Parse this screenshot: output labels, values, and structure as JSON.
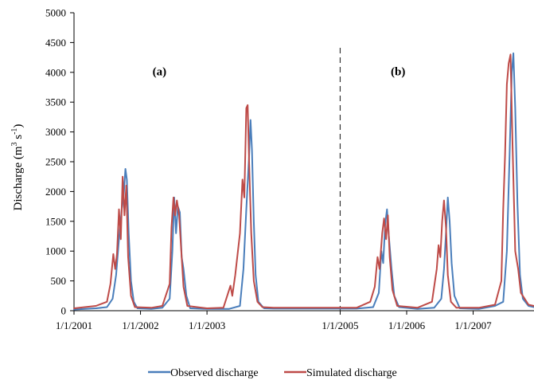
{
  "chart_data": {
    "type": "line",
    "xlabel": "",
    "ylabel": "Discharge (m³ s⁻¹)",
    "ylabel_parts": {
      "main": "Discharge (m",
      "sup1": "3",
      "mid": " s",
      "sup2": "-1",
      "end": ")"
    },
    "ylim": [
      0,
      5000
    ],
    "yticks": [
      0,
      500,
      1000,
      1500,
      2000,
      2500,
      3000,
      3500,
      4000,
      4500,
      5000
    ],
    "xlim": [
      "2001-01-01",
      "2007-12-01"
    ],
    "xticks": [
      {
        "date": "2001-01-01",
        "label": "1/1/2001"
      },
      {
        "date": "2002-01-01",
        "label": "1/1/2002"
      },
      {
        "date": "2003-01-01",
        "label": "1/1/2003"
      },
      {
        "date": "2005-01-01",
        "label": "1/1/2005"
      },
      {
        "date": "2006-01-01",
        "label": "1/1/2006"
      },
      {
        "date": "2007-01-01",
        "label": "1/1/2007"
      }
    ],
    "divider_date": "2005-01-01",
    "panel_labels": [
      {
        "text": "(a)",
        "date": "2002-04-15",
        "y": 3950
      },
      {
        "text": "(b)",
        "date": "2005-11-15",
        "y": 3950
      }
    ],
    "legend_position": "bottom",
    "series": [
      {
        "name": "Observed discharge",
        "color": "#4a7ebb",
        "points": [
          [
            "2001-01-01",
            20
          ],
          [
            "2001-03-01",
            30
          ],
          [
            "2001-05-01",
            40
          ],
          [
            "2001-07-01",
            60
          ],
          [
            "2001-08-01",
            200
          ],
          [
            "2001-08-20",
            600
          ],
          [
            "2001-09-05",
            1200
          ],
          [
            "2001-09-20",
            1700
          ],
          [
            "2001-10-01",
            1950
          ],
          [
            "2001-10-10",
            2380
          ],
          [
            "2001-10-18",
            2200
          ],
          [
            "2001-10-28",
            1300
          ],
          [
            "2001-11-10",
            500
          ],
          [
            "2001-11-25",
            150
          ],
          [
            "2001-12-15",
            40
          ],
          [
            "2002-03-01",
            30
          ],
          [
            "2002-05-01",
            50
          ],
          [
            "2002-06-10",
            200
          ],
          [
            "2002-06-25",
            1000
          ],
          [
            "2002-07-05",
            1900
          ],
          [
            "2002-07-15",
            1300
          ],
          [
            "2002-07-25",
            1750
          ],
          [
            "2002-08-05",
            1650
          ],
          [
            "2002-08-15",
            900
          ],
          [
            "2002-08-25",
            700
          ],
          [
            "2002-09-10",
            250
          ],
          [
            "2002-10-01",
            40
          ],
          [
            "2003-01-01",
            30
          ],
          [
            "2003-03-01",
            30
          ],
          [
            "2003-05-01",
            30
          ],
          [
            "2003-07-01",
            80
          ],
          [
            "2003-07-20",
            700
          ],
          [
            "2003-08-05",
            1700
          ],
          [
            "2003-08-20",
            2600
          ],
          [
            "2003-08-28",
            3200
          ],
          [
            "2003-09-05",
            2700
          ],
          [
            "2003-09-15",
            1500
          ],
          [
            "2003-09-25",
            600
          ],
          [
            "2003-10-10",
            150
          ],
          [
            "2003-11-10",
            40
          ],
          [
            "2004-01-01",
            35
          ],
          [
            "2005-01-01",
            35
          ],
          [
            "2005-04-01",
            35
          ],
          [
            "2005-07-01",
            60
          ],
          [
            "2005-08-01",
            300
          ],
          [
            "2005-08-15",
            1000
          ],
          [
            "2005-08-25",
            800
          ],
          [
            "2005-09-05",
            1450
          ],
          [
            "2005-09-15",
            1700
          ],
          [
            "2005-09-25",
            1250
          ],
          [
            "2005-10-10",
            700
          ],
          [
            "2005-10-25",
            250
          ],
          [
            "2005-11-20",
            60
          ],
          [
            "2006-03-01",
            30
          ],
          [
            "2006-06-01",
            50
          ],
          [
            "2006-07-10",
            200
          ],
          [
            "2006-07-25",
            700
          ],
          [
            "2006-08-05",
            1300
          ],
          [
            "2006-08-15",
            1900
          ],
          [
            "2006-08-25",
            1500
          ],
          [
            "2006-09-05",
            800
          ],
          [
            "2006-09-20",
            250
          ],
          [
            "2006-10-20",
            40
          ],
          [
            "2007-02-01",
            30
          ],
          [
            "2007-05-01",
            80
          ],
          [
            "2007-06-15",
            150
          ],
          [
            "2007-07-05",
            1000
          ],
          [
            "2007-07-20",
            2600
          ],
          [
            "2007-08-01",
            4000
          ],
          [
            "2007-08-10",
            4320
          ],
          [
            "2007-08-20",
            3400
          ],
          [
            "2007-09-01",
            1800
          ],
          [
            "2007-09-15",
            600
          ],
          [
            "2007-10-01",
            200
          ],
          [
            "2007-11-01",
            80
          ],
          [
            "2007-12-01",
            60
          ]
        ]
      },
      {
        "name": "Simulated discharge",
        "color": "#be4b48",
        "points": [
          [
            "2001-01-01",
            40
          ],
          [
            "2001-03-01",
            60
          ],
          [
            "2001-05-01",
            80
          ],
          [
            "2001-07-01",
            150
          ],
          [
            "2001-07-20",
            450
          ],
          [
            "2001-08-05",
            950
          ],
          [
            "2001-08-15",
            700
          ],
          [
            "2001-08-25",
            950
          ],
          [
            "2001-09-05",
            1700
          ],
          [
            "2001-09-15",
            1200
          ],
          [
            "2001-09-25",
            2250
          ],
          [
            "2001-10-05",
            1600
          ],
          [
            "2001-10-15",
            2100
          ],
          [
            "2001-10-25",
            900
          ],
          [
            "2001-11-10",
            250
          ],
          [
            "2001-12-01",
            60
          ],
          [
            "2002-03-01",
            50
          ],
          [
            "2002-05-01",
            80
          ],
          [
            "2002-06-10",
            450
          ],
          [
            "2002-06-20",
            1400
          ],
          [
            "2002-07-01",
            1900
          ],
          [
            "2002-07-10",
            1600
          ],
          [
            "2002-07-20",
            1850
          ],
          [
            "2002-08-01",
            1600
          ],
          [
            "2002-08-10",
            1150
          ],
          [
            "2002-08-25",
            400
          ],
          [
            "2002-09-15",
            80
          ],
          [
            "2003-01-01",
            40
          ],
          [
            "2003-04-01",
            50
          ],
          [
            "2003-05-10",
            420
          ],
          [
            "2003-05-20",
            250
          ],
          [
            "2003-06-05",
            600
          ],
          [
            "2003-07-01",
            1300
          ],
          [
            "2003-07-15",
            2200
          ],
          [
            "2003-07-25",
            1900
          ],
          [
            "2003-08-05",
            3400
          ],
          [
            "2003-08-12",
            3450
          ],
          [
            "2003-08-20",
            2500
          ],
          [
            "2003-09-01",
            1300
          ],
          [
            "2003-09-15",
            500
          ],
          [
            "2003-10-05",
            150
          ],
          [
            "2003-11-01",
            60
          ],
          [
            "2004-01-01",
            50
          ],
          [
            "2005-01-01",
            50
          ],
          [
            "2005-04-01",
            50
          ],
          [
            "2005-06-15",
            150
          ],
          [
            "2005-07-10",
            400
          ],
          [
            "2005-07-25",
            900
          ],
          [
            "2005-08-05",
            700
          ],
          [
            "2005-08-20",
            1300
          ],
          [
            "2005-08-30",
            1550
          ],
          [
            "2005-09-10",
            1200
          ],
          [
            "2005-09-20",
            1600
          ],
          [
            "2005-09-30",
            900
          ],
          [
            "2005-10-15",
            350
          ],
          [
            "2005-11-10",
            80
          ],
          [
            "2006-03-01",
            50
          ],
          [
            "2006-05-20",
            150
          ],
          [
            "2006-06-15",
            700
          ],
          [
            "2006-06-25",
            1100
          ],
          [
            "2006-07-05",
            900
          ],
          [
            "2006-07-15",
            1500
          ],
          [
            "2006-07-25",
            1850
          ],
          [
            "2006-08-05",
            1400
          ],
          [
            "2006-08-15",
            600
          ],
          [
            "2006-09-01",
            150
          ],
          [
            "2006-10-01",
            50
          ],
          [
            "2007-02-01",
            50
          ],
          [
            "2007-05-01",
            100
          ],
          [
            "2007-06-05",
            500
          ],
          [
            "2007-06-15",
            1700
          ],
          [
            "2007-06-25",
            2600
          ],
          [
            "2007-07-05",
            3800
          ],
          [
            "2007-07-15",
            4150
          ],
          [
            "2007-07-25",
            4300
          ],
          [
            "2007-08-05",
            2800
          ],
          [
            "2007-08-20",
            1000
          ],
          [
            "2007-09-05",
            700
          ],
          [
            "2007-09-20",
            300
          ],
          [
            "2007-11-01",
            100
          ],
          [
            "2007-12-01",
            80
          ]
        ]
      }
    ]
  }
}
